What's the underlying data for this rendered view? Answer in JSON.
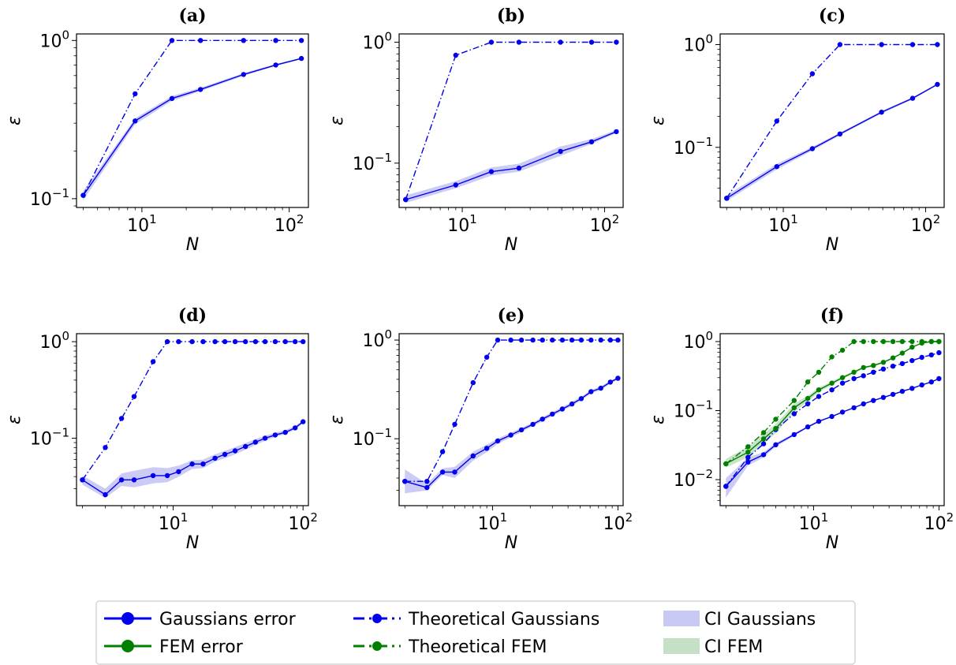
{
  "figure": {
    "xlabel": "N",
    "ylabel": "ε",
    "legend": {
      "placement": "bottom-center",
      "entries": [
        {
          "label": "Gaussians error",
          "kind": "solid-marker",
          "color": "#0000ee"
        },
        {
          "label": "FEM error",
          "kind": "solid-marker",
          "color": "#008000"
        },
        {
          "label": "Theoretical Gaussians",
          "kind": "dashdot-marker",
          "color": "#0000ee"
        },
        {
          "label": "Theoretical FEM",
          "kind": "dashdot-marker",
          "color": "#008000"
        },
        {
          "label": "CI Gaussians",
          "kind": "patch",
          "color": "#c8c8f5"
        },
        {
          "label": "CI FEM",
          "kind": "patch",
          "color": "#c6e0c6"
        }
      ]
    }
  },
  "chart_data": [
    {
      "type": "line",
      "title": "(a)",
      "xlabel": "N",
      "ylabel": "ε",
      "xscale": "log",
      "yscale": "log",
      "xlim": [
        3.6,
        135
      ],
      "ylim": [
        0.088,
        1.1
      ],
      "xticks": [
        10,
        100
      ],
      "xtick_labels": [
        "10^1",
        "10^2"
      ],
      "yticks": [
        0.1,
        1
      ],
      "ytick_labels": [
        "10^-1",
        "10^0"
      ],
      "series": [
        {
          "style": "solid",
          "color": "#0000ee",
          "x": [
            4,
            9,
            16,
            25,
            49,
            81,
            121
          ],
          "y": [
            0.105,
            0.31,
            0.43,
            0.49,
            0.61,
            0.7,
            0.77
          ],
          "ci_low": [
            0.098,
            0.295,
            0.415,
            0.478,
            0.598,
            0.69,
            0.762
          ],
          "ci_high": [
            0.112,
            0.322,
            0.445,
            0.502,
            0.622,
            0.71,
            0.778
          ]
        },
        {
          "style": "dashdot",
          "color": "#0000ee",
          "x": [
            4,
            9,
            16,
            25,
            49,
            81,
            121
          ],
          "y": [
            0.105,
            0.46,
            1,
            1,
            1,
            1,
            1
          ]
        }
      ]
    },
    {
      "type": "line",
      "title": "(b)",
      "xlabel": "N",
      "ylabel": "ε",
      "xscale": "log",
      "yscale": "log",
      "xlim": [
        3.6,
        135
      ],
      "ylim": [
        0.043,
        1.17
      ],
      "xticks": [
        10,
        100
      ],
      "xtick_labels": [
        "10^1",
        "10^2"
      ],
      "yticks": [
        0.1,
        1
      ],
      "ytick_labels": [
        "10^-1",
        "10^0"
      ],
      "series": [
        {
          "style": "solid",
          "color": "#0000ee",
          "x": [
            4,
            9,
            16,
            25,
            49,
            81,
            121
          ],
          "y": [
            0.05,
            0.066,
            0.085,
            0.091,
            0.125,
            0.15,
            0.182
          ],
          "ci_low": [
            0.047,
            0.062,
            0.079,
            0.085,
            0.115,
            0.144,
            0.177
          ],
          "ci_high": [
            0.054,
            0.071,
            0.092,
            0.099,
            0.137,
            0.158,
            0.188
          ]
        },
        {
          "style": "dashdot",
          "color": "#0000ee",
          "x": [
            4,
            9,
            16,
            25,
            49,
            81,
            121
          ],
          "y": [
            0.05,
            0.78,
            1,
            1,
            1,
            1,
            1
          ]
        }
      ]
    },
    {
      "type": "line",
      "title": "(c)",
      "xlabel": "N",
      "ylabel": "ε",
      "xscale": "log",
      "yscale": "log",
      "xlim": [
        3.6,
        135
      ],
      "ylim": [
        0.026,
        1.27
      ],
      "xticks": [
        10,
        100
      ],
      "xtick_labels": [
        "10^1",
        "10^2"
      ],
      "yticks": [
        0.1,
        1
      ],
      "ytick_labels": [
        "10^-1",
        "10^0"
      ],
      "series": [
        {
          "style": "solid",
          "color": "#0000ee",
          "x": [
            4,
            9,
            16,
            25,
            49,
            81,
            121
          ],
          "y": [
            0.032,
            0.065,
            0.097,
            0.135,
            0.22,
            0.3,
            0.41
          ],
          "ci_low": [
            0.03,
            0.061,
            0.093,
            0.131,
            0.214,
            0.293,
            0.404
          ],
          "ci_high": [
            0.034,
            0.069,
            0.101,
            0.139,
            0.226,
            0.307,
            0.416
          ]
        },
        {
          "style": "dashdot",
          "color": "#0000ee",
          "x": [
            4,
            9,
            16,
            25,
            49,
            81,
            121
          ],
          "y": [
            0.032,
            0.18,
            0.52,
            1,
            1,
            1,
            1
          ]
        }
      ]
    },
    {
      "type": "line",
      "title": "(d)",
      "xlabel": "N",
      "ylabel": "ε",
      "xscale": "log",
      "yscale": "log",
      "xlim": [
        1.8,
        110
      ],
      "ylim": [
        0.02,
        1.21
      ],
      "xticks": [
        10,
        100
      ],
      "xtick_labels": [
        "10^1",
        "10^2"
      ],
      "yticks": [
        0.1,
        1
      ],
      "ytick_labels": [
        "10^-1",
        "10^0"
      ],
      "series": [
        {
          "style": "solid",
          "color": "#0000ee",
          "x": [
            2,
            3,
            4,
            5,
            7,
            9,
            11,
            14,
            17,
            21,
            25,
            30,
            36,
            43,
            51,
            61,
            73,
            87,
            100
          ],
          "y": [
            0.037,
            0.026,
            0.037,
            0.037,
            0.041,
            0.041,
            0.045,
            0.054,
            0.054,
            0.062,
            0.068,
            0.074,
            0.082,
            0.091,
            0.1,
            0.108,
            0.115,
            0.128,
            0.148
          ],
          "ci_low": [
            0.033,
            0.024,
            0.032,
            0.031,
            0.034,
            0.035,
            0.04,
            0.048,
            0.049,
            0.057,
            0.062,
            0.068,
            0.076,
            0.085,
            0.094,
            0.103,
            0.11,
            0.123,
            0.143
          ],
          "ci_high": [
            0.041,
            0.03,
            0.043,
            0.046,
            0.05,
            0.049,
            0.052,
            0.059,
            0.06,
            0.068,
            0.074,
            0.081,
            0.089,
            0.098,
            0.106,
            0.114,
            0.121,
            0.134,
            0.153
          ]
        },
        {
          "style": "dashdot",
          "color": "#0000ee",
          "x": [
            2,
            3,
            4,
            5,
            7,
            9,
            11,
            14,
            17,
            21,
            25,
            30,
            36,
            43,
            51,
            61,
            73,
            87,
            100
          ],
          "y": [
            0.037,
            0.08,
            0.16,
            0.27,
            0.62,
            1,
            1,
            1,
            1,
            1,
            1,
            1,
            1,
            1,
            1,
            1,
            1,
            1,
            1
          ]
        }
      ]
    },
    {
      "type": "line",
      "title": "(e)",
      "xlabel": "N",
      "ylabel": "ε",
      "xscale": "log",
      "yscale": "log",
      "xlim": [
        1.8,
        110
      ],
      "ylim": [
        0.021,
        1.16
      ],
      "xticks": [
        10,
        100
      ],
      "xtick_labels": [
        "10^1",
        "10^2"
      ],
      "yticks": [
        0.1,
        1
      ],
      "ytick_labels": [
        "10^-1",
        "10^0"
      ],
      "series": [
        {
          "style": "solid",
          "color": "#0000ee",
          "x": [
            2,
            3,
            4,
            5,
            7,
            9,
            11,
            14,
            17,
            21,
            25,
            30,
            36,
            43,
            51,
            61,
            73,
            87,
            100
          ],
          "y": [
            0.037,
            0.032,
            0.046,
            0.046,
            0.067,
            0.08,
            0.095,
            0.109,
            0.123,
            0.14,
            0.158,
            0.178,
            0.2,
            0.225,
            0.255,
            0.3,
            0.325,
            0.375,
            0.41
          ],
          "ci_low": [
            0.028,
            0.03,
            0.043,
            0.04,
            0.06,
            0.073,
            0.089,
            0.103,
            0.117,
            0.134,
            0.15,
            0.17,
            0.191,
            0.215,
            0.245,
            0.288,
            0.312,
            0.362,
            0.396
          ],
          "ci_high": [
            0.049,
            0.035,
            0.05,
            0.052,
            0.074,
            0.087,
            0.101,
            0.115,
            0.129,
            0.146,
            0.166,
            0.186,
            0.21,
            0.236,
            0.266,
            0.312,
            0.338,
            0.388,
            0.424
          ]
        },
        {
          "style": "dashdot",
          "color": "#0000ee",
          "x": [
            2,
            3,
            4,
            5,
            7,
            9,
            11,
            14,
            17,
            21,
            25,
            30,
            36,
            43,
            51,
            61,
            73,
            87,
            100
          ],
          "y": [
            0.037,
            0.037,
            0.074,
            0.14,
            0.37,
            0.67,
            1,
            1,
            1,
            1,
            1,
            1,
            1,
            1,
            1,
            1,
            1,
            1,
            1
          ]
        }
      ]
    },
    {
      "type": "line",
      "title": "(f)",
      "xlabel": "N",
      "ylabel": "ε",
      "xscale": "log",
      "yscale": "log",
      "xlim": [
        1.8,
        110
      ],
      "ylim": [
        0.0042,
        1.3
      ],
      "xticks": [
        10,
        100
      ],
      "xtick_labels": [
        "10^1",
        "10^2"
      ],
      "yticks": [
        0.01,
        0.1,
        1
      ],
      "ytick_labels": [
        "10^-2",
        "10^-1",
        "10^0"
      ],
      "series": [
        {
          "style": "solid",
          "color": "#0000ee",
          "x": [
            2,
            3,
            4,
            5,
            7,
            9,
            11,
            14,
            17,
            21,
            25,
            30,
            36,
            43,
            51,
            61,
            73,
            87,
            100
          ],
          "y": [
            0.008,
            0.018,
            0.023,
            0.032,
            0.045,
            0.058,
            0.07,
            0.082,
            0.095,
            0.11,
            0.125,
            0.14,
            0.155,
            0.172,
            0.19,
            0.21,
            0.235,
            0.26,
            0.29
          ],
          "ci_low": [
            0.0055,
            0.016,
            0.021,
            0.03,
            0.043,
            0.056,
            0.068,
            0.08,
            0.093,
            0.108,
            0.123,
            0.138,
            0.153,
            0.17,
            0.188,
            0.208,
            0.232,
            0.257,
            0.287
          ],
          "ci_high": [
            0.0105,
            0.021,
            0.025,
            0.034,
            0.047,
            0.06,
            0.072,
            0.084,
            0.097,
            0.112,
            0.127,
            0.142,
            0.157,
            0.174,
            0.192,
            0.212,
            0.238,
            0.263,
            0.293
          ]
        },
        {
          "style": "dashdot",
          "color": "#0000ee",
          "x": [
            2,
            3,
            4,
            5,
            7,
            9,
            11,
            14,
            17,
            21,
            25,
            30,
            36,
            43,
            51,
            61,
            73,
            87,
            100
          ],
          "y": [
            0.008,
            0.021,
            0.033,
            0.053,
            0.09,
            0.125,
            0.16,
            0.2,
            0.25,
            0.29,
            0.32,
            0.36,
            0.4,
            0.44,
            0.48,
            0.53,
            0.59,
            0.64,
            0.69
          ]
        },
        {
          "style": "solid",
          "color": "#008000",
          "x": [
            2,
            3,
            4,
            5,
            7,
            9,
            11,
            14,
            17,
            21,
            25,
            30,
            36,
            43,
            51,
            61,
            73,
            87,
            100
          ],
          "y": [
            0.017,
            0.025,
            0.039,
            0.055,
            0.11,
            0.15,
            0.2,
            0.25,
            0.3,
            0.36,
            0.42,
            0.45,
            0.5,
            0.58,
            0.68,
            0.83,
            0.95,
            1,
            1
          ],
          "ci_low": [
            0.015,
            0.021,
            0.033,
            0.047,
            0.095,
            0.135,
            0.185,
            0.235,
            0.285,
            0.345,
            0.405,
            0.435,
            0.485,
            0.565,
            0.665,
            0.815,
            0.94,
            0.99,
            0.99
          ],
          "ci_high": [
            0.02,
            0.03,
            0.046,
            0.064,
            0.125,
            0.165,
            0.215,
            0.265,
            0.315,
            0.375,
            0.435,
            0.465,
            0.515,
            0.595,
            0.695,
            0.845,
            0.96,
            1.01,
            1.01
          ]
        },
        {
          "style": "dashdot",
          "color": "#008000",
          "x": [
            2,
            3,
            4,
            5,
            7,
            9,
            11,
            14,
            17,
            21,
            25,
            30,
            36,
            43,
            51,
            61,
            73,
            87,
            100
          ],
          "y": [
            0.017,
            0.03,
            0.048,
            0.075,
            0.14,
            0.26,
            0.36,
            0.6,
            0.75,
            1,
            1,
            1,
            1,
            1,
            1,
            1,
            1,
            1,
            1
          ]
        }
      ]
    }
  ]
}
